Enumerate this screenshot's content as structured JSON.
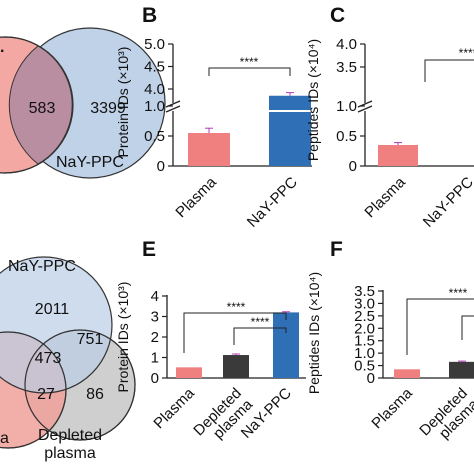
{
  "panel_letters": {
    "B": "B",
    "C": "C",
    "E": "E",
    "F": "F"
  },
  "venn_top": {
    "label_only_ppc": "3399",
    "label_shared": "583",
    "label_ppc": "NaY-PPC",
    "colors": {
      "plasma": "#f4a8a3",
      "ppc": "#b9cde6",
      "overlap": "#b98ea0"
    }
  },
  "venn_bottom": {
    "label_ppc": "NaY-PPC",
    "label_depleted": "Depleted",
    "label_depleted2": "plasma",
    "label_plasma_partial": "a",
    "values": {
      "ppc_only": "2011",
      "ppc_depleted": "751",
      "all_three": "473",
      "plasma_depleted": "27",
      "depleted_only": "86"
    },
    "colors": {
      "plasma": "#f0a09a",
      "ppc": "#b9cde6",
      "depleted": "#cfcfcf"
    }
  },
  "colors": {
    "plasma": "#f08080",
    "nay_ppc": "#2f6fb5",
    "depleted": "#3a3a3a",
    "error": "#b23bb5"
  },
  "chart_data": [
    {
      "panel": "B",
      "type": "bar",
      "categories": [
        "Plasma",
        "NaY-PPC"
      ],
      "values": [
        0.55,
        3.85
      ],
      "errors": [
        0.08,
        0.07
      ],
      "ylabel": "Protein IDs (×10³)",
      "axis_break": [
        1.3,
        3.7
      ],
      "ylim": [
        0,
        5.0
      ],
      "yticks_lower": [
        "0",
        "0.5",
        "1.0"
      ],
      "yticks_upper": [
        "4.0",
        "4.5",
        "5.0"
      ],
      "significance": "****"
    },
    {
      "panel": "C",
      "type": "bar",
      "categories": [
        "Plasma",
        "NaY-PPC"
      ],
      "values": [
        0.35,
        null
      ],
      "errors": [
        0.04,
        null
      ],
      "ylabel": "Peptides IDs (×10⁴)",
      "axis_break": [
        1.3,
        3.5
      ],
      "ylim": [
        0,
        4.0
      ],
      "yticks_lower": [
        "0",
        "0.5",
        "1.0"
      ],
      "yticks_upper": [
        "3.5",
        "4.0"
      ],
      "significance": "****"
    },
    {
      "panel": "E",
      "type": "bar",
      "categories": [
        "Plasma",
        "Depleted plasma",
        "NaY-PPC"
      ],
      "values": [
        0.52,
        1.12,
        3.2
      ],
      "errors": [
        0.0,
        0.05,
        0.03
      ],
      "ylabel": "Protein IDs (×10³)",
      "ylim": [
        0,
        4
      ],
      "yticks": [
        "0",
        "1",
        "2",
        "3",
        "4"
      ],
      "significance": [
        "****",
        "****"
      ]
    },
    {
      "panel": "F",
      "type": "bar",
      "categories": [
        "Plasma",
        "Depleted plasma"
      ],
      "values": [
        0.35,
        0.65
      ],
      "errors": [
        0.0,
        0.03
      ],
      "ylabel": "Peptides IDs (×10⁴)",
      "ylim": [
        0,
        3.5
      ],
      "yticks": [
        "0",
        "0.5",
        "1.0",
        "1.5",
        "2.0",
        "2.5",
        "3.0",
        "3.5"
      ],
      "significance": "****"
    }
  ]
}
